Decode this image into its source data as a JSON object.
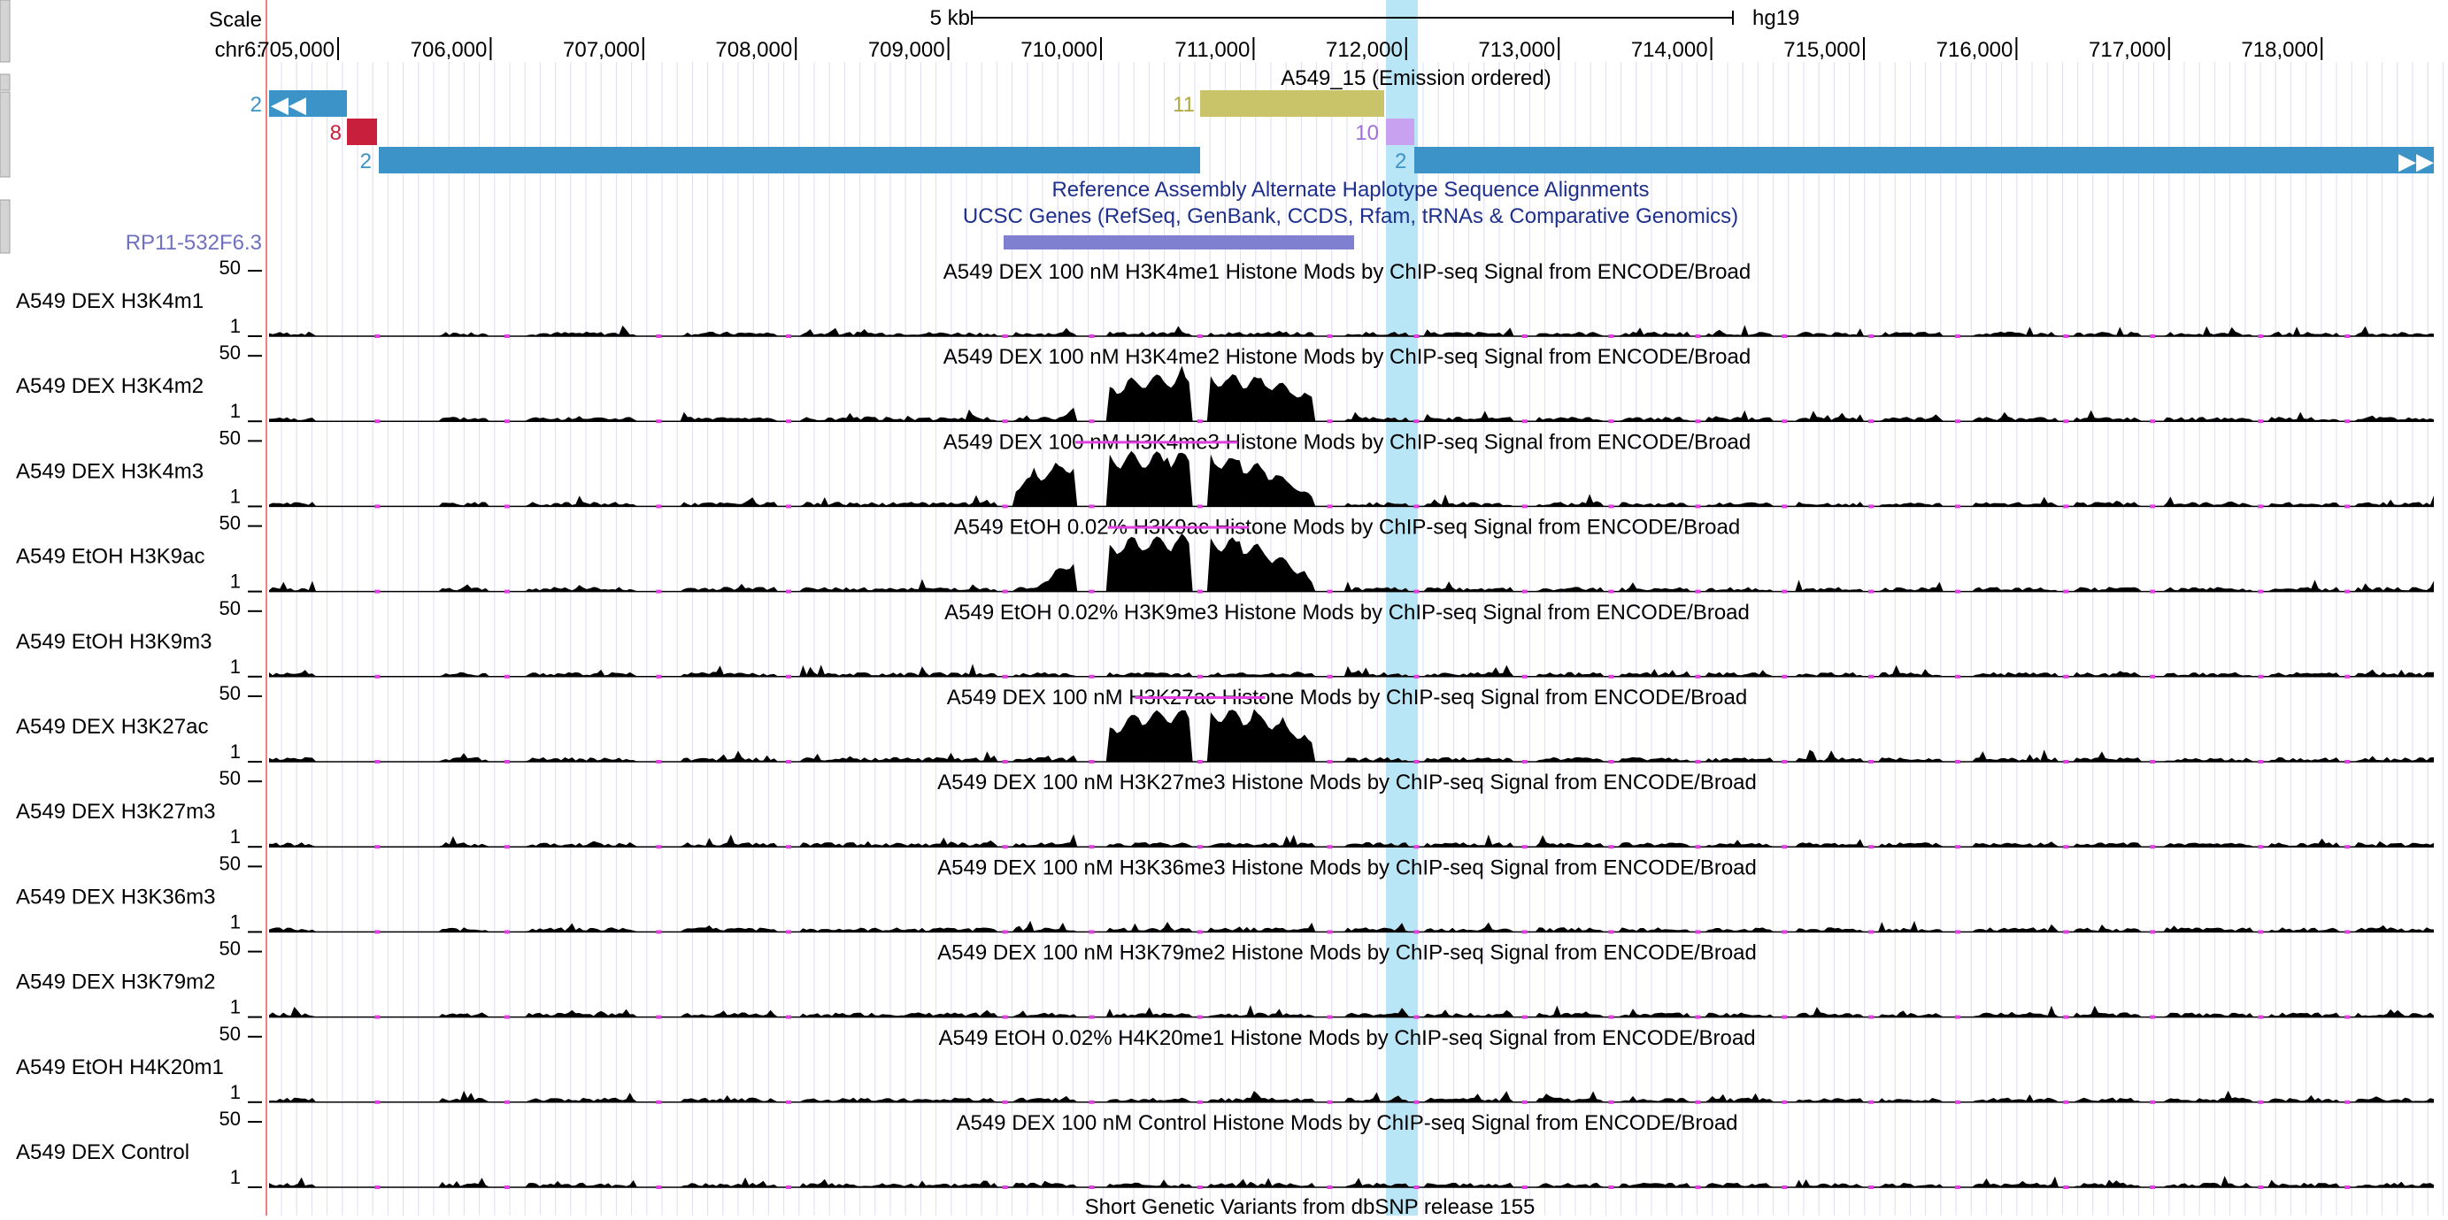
{
  "ruler": {
    "scale_label": "Scale",
    "scale_bar_label": "5 kb",
    "assembly": "hg19",
    "chrom_label": "chr6:",
    "positions": [
      "705,000",
      "706,000",
      "707,000",
      "708,000",
      "709,000",
      "710,000",
      "711,000",
      "712,000",
      "713,000",
      "714,000",
      "715,000",
      "716,000",
      "717,000",
      "718,000"
    ]
  },
  "chromhmm": {
    "title": "A549_15 (Emission ordered)",
    "states": [
      "11",
      "10"
    ]
  },
  "alt_haplotype": {
    "title": "Reference Assembly Alternate Haplotype Sequence Alignments",
    "numbers": [
      "2",
      "2",
      "8",
      "2"
    ]
  },
  "ucsc_genes": {
    "title": "UCSC Genes (RefSeq, GenBank, CCDS, Rfam, tRNAs & Comparative Genomics)",
    "gene": "RP11-532F6.3"
  },
  "signal_tracks": [
    {
      "label": "A549 DEX H3K4m1",
      "title": "A549 DEX 100 nM H3K4me1 Histone Mods by ChIP-seq Signal from ENCODE/Broad",
      "max": "50",
      "min": "1"
    },
    {
      "label": "A549 DEX H3K4m2",
      "title": "A549 DEX 100 nM H3K4me2 Histone Mods by ChIP-seq Signal from ENCODE/Broad",
      "max": "50",
      "min": "1"
    },
    {
      "label": "A549 DEX H3K4m3",
      "title": "A549 DEX 100 nM H3K4me3 Histone Mods by ChIP-seq Signal from ENCODE/Broad",
      "max": "50",
      "min": "1"
    },
    {
      "label": "A549 EtOH H3K9ac",
      "title": "A549 EtOH 0.02% H3K9ac Histone Mods by ChIP-seq Signal from ENCODE/Broad",
      "max": "50",
      "min": "1"
    },
    {
      "label": "A549 EtOH H3K9m3",
      "title": "A549 EtOH 0.02% H3K9me3 Histone Mods by ChIP-seq Signal from ENCODE/Broad",
      "max": "50",
      "min": "1"
    },
    {
      "label": "A549 DEX H3K27ac",
      "title": "A549 DEX 100 nM H3K27ac Histone Mods by ChIP-seq Signal from ENCODE/Broad",
      "max": "50",
      "min": "1"
    },
    {
      "label": "A549 DEX H3K27m3",
      "title": "A549 DEX 100 nM H3K27me3 Histone Mods by ChIP-seq Signal from ENCODE/Broad",
      "max": "50",
      "min": "1"
    },
    {
      "label": "A549 DEX H3K36m3",
      "title": "A549 DEX 100 nM H3K36me3 Histone Mods by ChIP-seq Signal from ENCODE/Broad",
      "max": "50",
      "min": "1"
    },
    {
      "label": "A549 DEX H3K79m2",
      "title": "A549 DEX 100 nM H3K79me2 Histone Mods by ChIP-seq Signal from ENCODE/Broad",
      "max": "50",
      "min": "1"
    },
    {
      "label": "A549 EtOH H4K20m1",
      "title": "A549 EtOH 0.02% H4K20me1 Histone Mods by ChIP-seq Signal from ENCODE/Broad",
      "max": "50",
      "min": "1"
    },
    {
      "label": "A549 DEX Control",
      "title": "A549 DEX 100 nM Control Histone Mods by ChIP-seq Signal from ENCODE/Broad",
      "max": "50",
      "min": "1"
    }
  ],
  "snp": {
    "title": "Short Genetic Variants from dbSNP release 155"
  },
  "colors": {
    "alt_haplotype": "#3b93c7",
    "alt_red": "#c8203c",
    "chromhmm_11": "#c9c46a",
    "chromhmm_10": "#c8a2f0",
    "gene": "#8080d0",
    "highlight": "#b8e6f6",
    "signal": "#000000",
    "clip": "#e040e0",
    "grid": "#d8d8f0"
  }
}
